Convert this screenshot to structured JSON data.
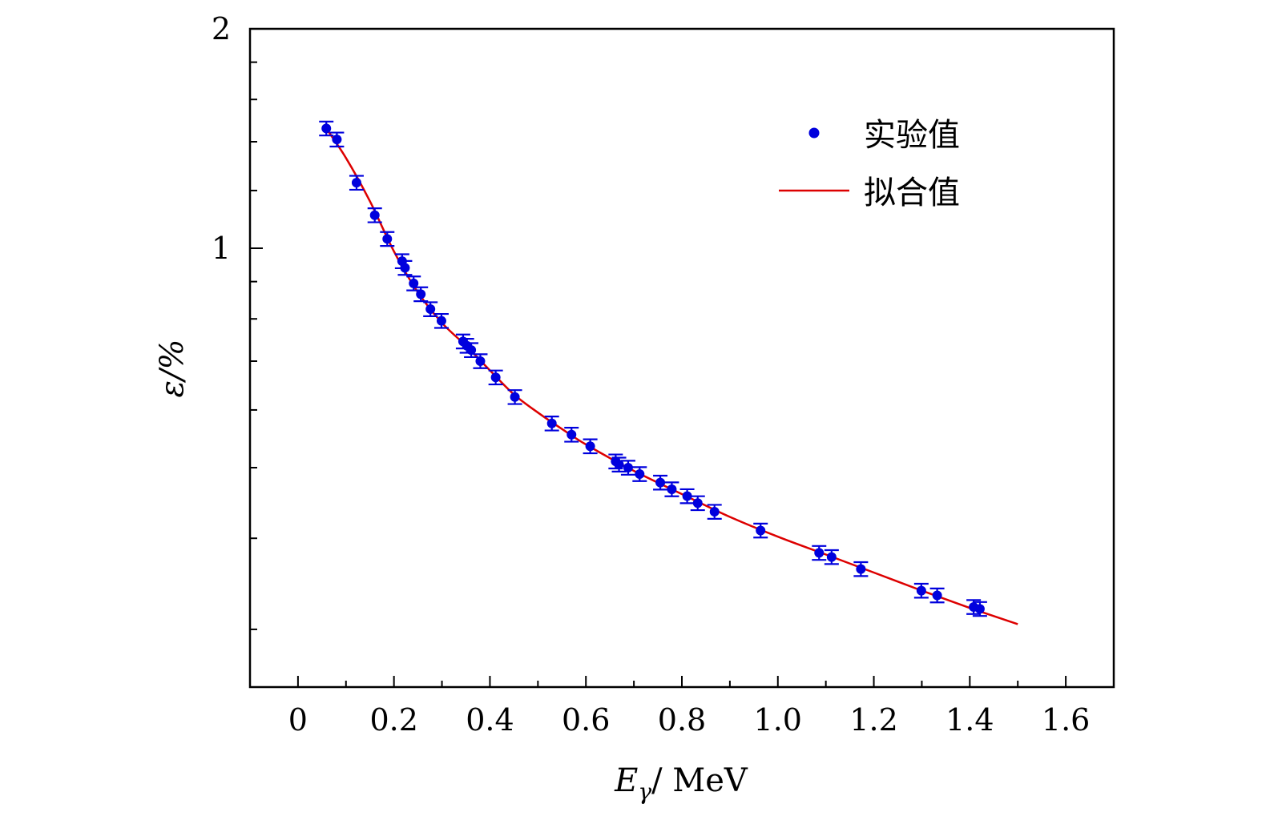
{
  "chart_data": {
    "type": "scatter",
    "x_axis": {
      "label_main": "E",
      "label_sub": "γ",
      "label_unit": "/ MeV",
      "range": [
        -0.1,
        1.7
      ],
      "ticks": [
        0,
        0.2,
        0.4,
        0.6,
        0.8,
        1.0,
        1.2,
        1.4,
        1.6
      ],
      "tick_labels": [
        "0",
        "0.2",
        "0.4",
        "0.6",
        "0.8",
        "1.0",
        "1.2",
        "1.4",
        "1.6"
      ]
    },
    "y_axis": {
      "label": "ε/%",
      "scale": "log",
      "range": [
        0.25,
        2
      ],
      "ticks": [
        1,
        2
      ],
      "tick_labels": [
        "1",
        "2"
      ],
      "minor_ticks": [
        0.3,
        0.4,
        0.5,
        0.6,
        0.7,
        0.8,
        0.9,
        1.2,
        1.4,
        1.6,
        1.8
      ]
    },
    "grid": false,
    "legend_position": "top-right",
    "series": [
      {
        "name": "实验值",
        "kind": "points",
        "color": "#0000dd",
        "error": 0.022,
        "x": [
          0.059,
          0.081,
          0.122,
          0.16,
          0.186,
          0.217,
          0.223,
          0.241,
          0.256,
          0.276,
          0.299,
          0.344,
          0.352,
          0.361,
          0.38,
          0.412,
          0.452,
          0.529,
          0.57,
          0.609,
          0.662,
          0.669,
          0.688,
          0.712,
          0.755,
          0.779,
          0.811,
          0.833,
          0.868,
          0.964,
          1.086,
          1.112,
          1.173,
          1.299,
          1.332,
          1.408,
          1.421
        ],
        "y": [
          1.46,
          1.41,
          1.23,
          1.11,
          1.03,
          0.96,
          0.94,
          0.895,
          0.865,
          0.825,
          0.795,
          0.745,
          0.735,
          0.725,
          0.7,
          0.665,
          0.625,
          0.575,
          0.555,
          0.535,
          0.51,
          0.505,
          0.5,
          0.49,
          0.477,
          0.467,
          0.457,
          0.447,
          0.435,
          0.41,
          0.382,
          0.377,
          0.363,
          0.339,
          0.334,
          0.322,
          0.32
        ]
      },
      {
        "name": "拟合值",
        "kind": "line",
        "color": "#dd0000",
        "x": [
          0.059,
          0.1,
          0.15,
          0.2,
          0.25,
          0.3,
          0.35,
          0.4,
          0.45,
          0.5,
          0.55,
          0.6,
          0.7,
          0.8,
          0.9,
          1.0,
          1.1,
          1.2,
          1.3,
          1.4,
          1.5
        ],
        "y": [
          1.46,
          1.33,
          1.16,
          0.99,
          0.87,
          0.79,
          0.735,
          0.68,
          0.63,
          0.595,
          0.565,
          0.538,
          0.495,
          0.46,
          0.428,
          0.402,
          0.38,
          0.359,
          0.339,
          0.321,
          0.305
        ]
      }
    ]
  }
}
